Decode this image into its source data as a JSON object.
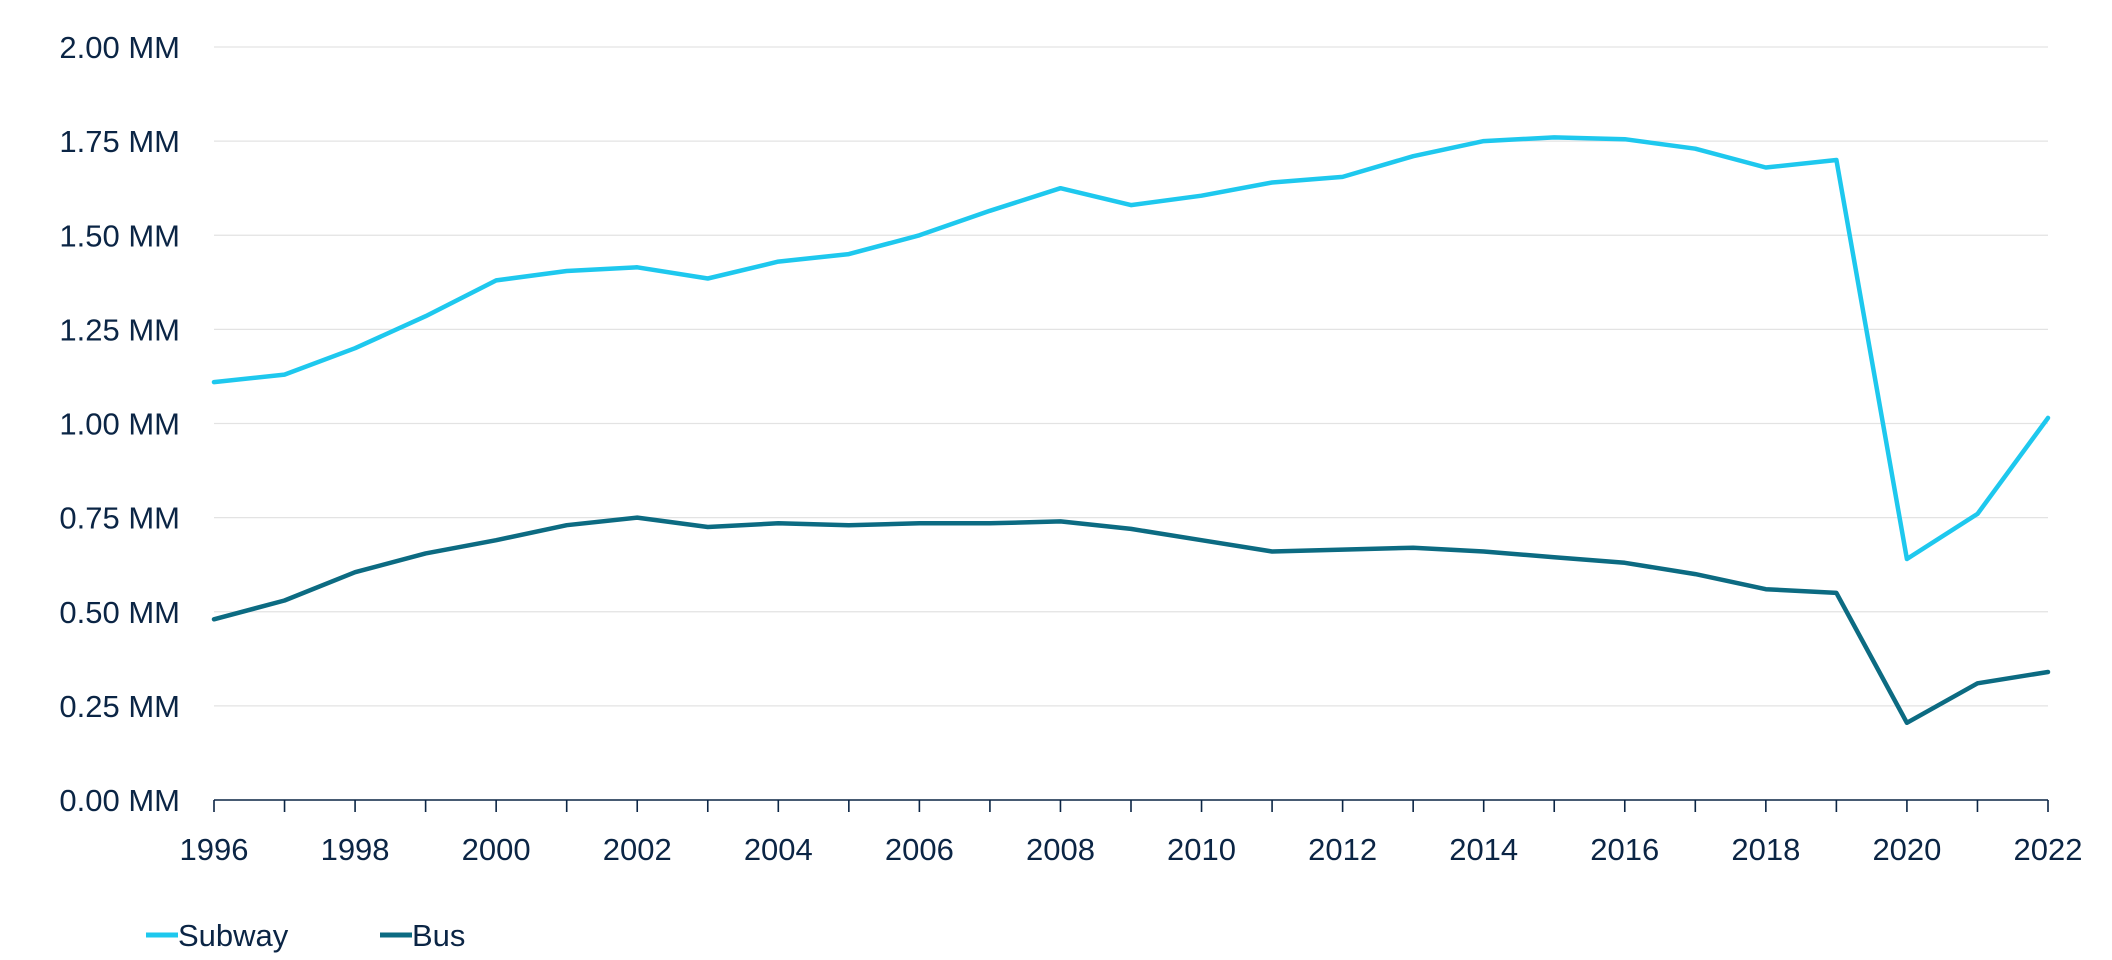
{
  "chart_data": {
    "type": "line",
    "title": "",
    "xlabel": "",
    "ylabel": "",
    "x": [
      1996,
      1997,
      1998,
      1999,
      2000,
      2001,
      2002,
      2003,
      2004,
      2005,
      2006,
      2007,
      2008,
      2009,
      2010,
      2011,
      2012,
      2013,
      2014,
      2015,
      2016,
      2017,
      2018,
      2019,
      2020,
      2021,
      2022
    ],
    "xticks": [
      1996,
      1998,
      2000,
      2002,
      2004,
      2006,
      2008,
      2010,
      2012,
      2014,
      2016,
      2018,
      2020,
      2022
    ],
    "ylim": [
      0,
      2.0
    ],
    "yticks": [
      0,
      0.25,
      0.5,
      0.75,
      1.0,
      1.25,
      1.5,
      1.75,
      2.0
    ],
    "ytick_labels": [
      "0.00 MM",
      "0.25 MM",
      "0.50 MM",
      "0.75 MM",
      "1.00 MM",
      "1.25 MM",
      "1.50 MM",
      "1.75 MM",
      "2.00 MM"
    ],
    "grid": "horizontal",
    "legend_position": "bottom-left",
    "series": [
      {
        "name": "Subway",
        "color": "#1ec8ee",
        "values": [
          1.11,
          1.13,
          1.2,
          1.285,
          1.38,
          1.405,
          1.415,
          1.385,
          1.43,
          1.45,
          1.5,
          1.565,
          1.625,
          1.58,
          1.605,
          1.64,
          1.655,
          1.71,
          1.75,
          1.76,
          1.755,
          1.73,
          1.68,
          1.7,
          0.64,
          0.76,
          1.015
        ]
      },
      {
        "name": "Bus",
        "color": "#0c6b82",
        "values": [
          0.48,
          0.53,
          0.605,
          0.655,
          0.69,
          0.73,
          0.75,
          0.725,
          0.735,
          0.73,
          0.735,
          0.735,
          0.74,
          0.72,
          0.69,
          0.66,
          0.665,
          0.67,
          0.66,
          0.645,
          0.63,
          0.6,
          0.56,
          0.55,
          0.205,
          0.31,
          0.34
        ]
      }
    ]
  }
}
